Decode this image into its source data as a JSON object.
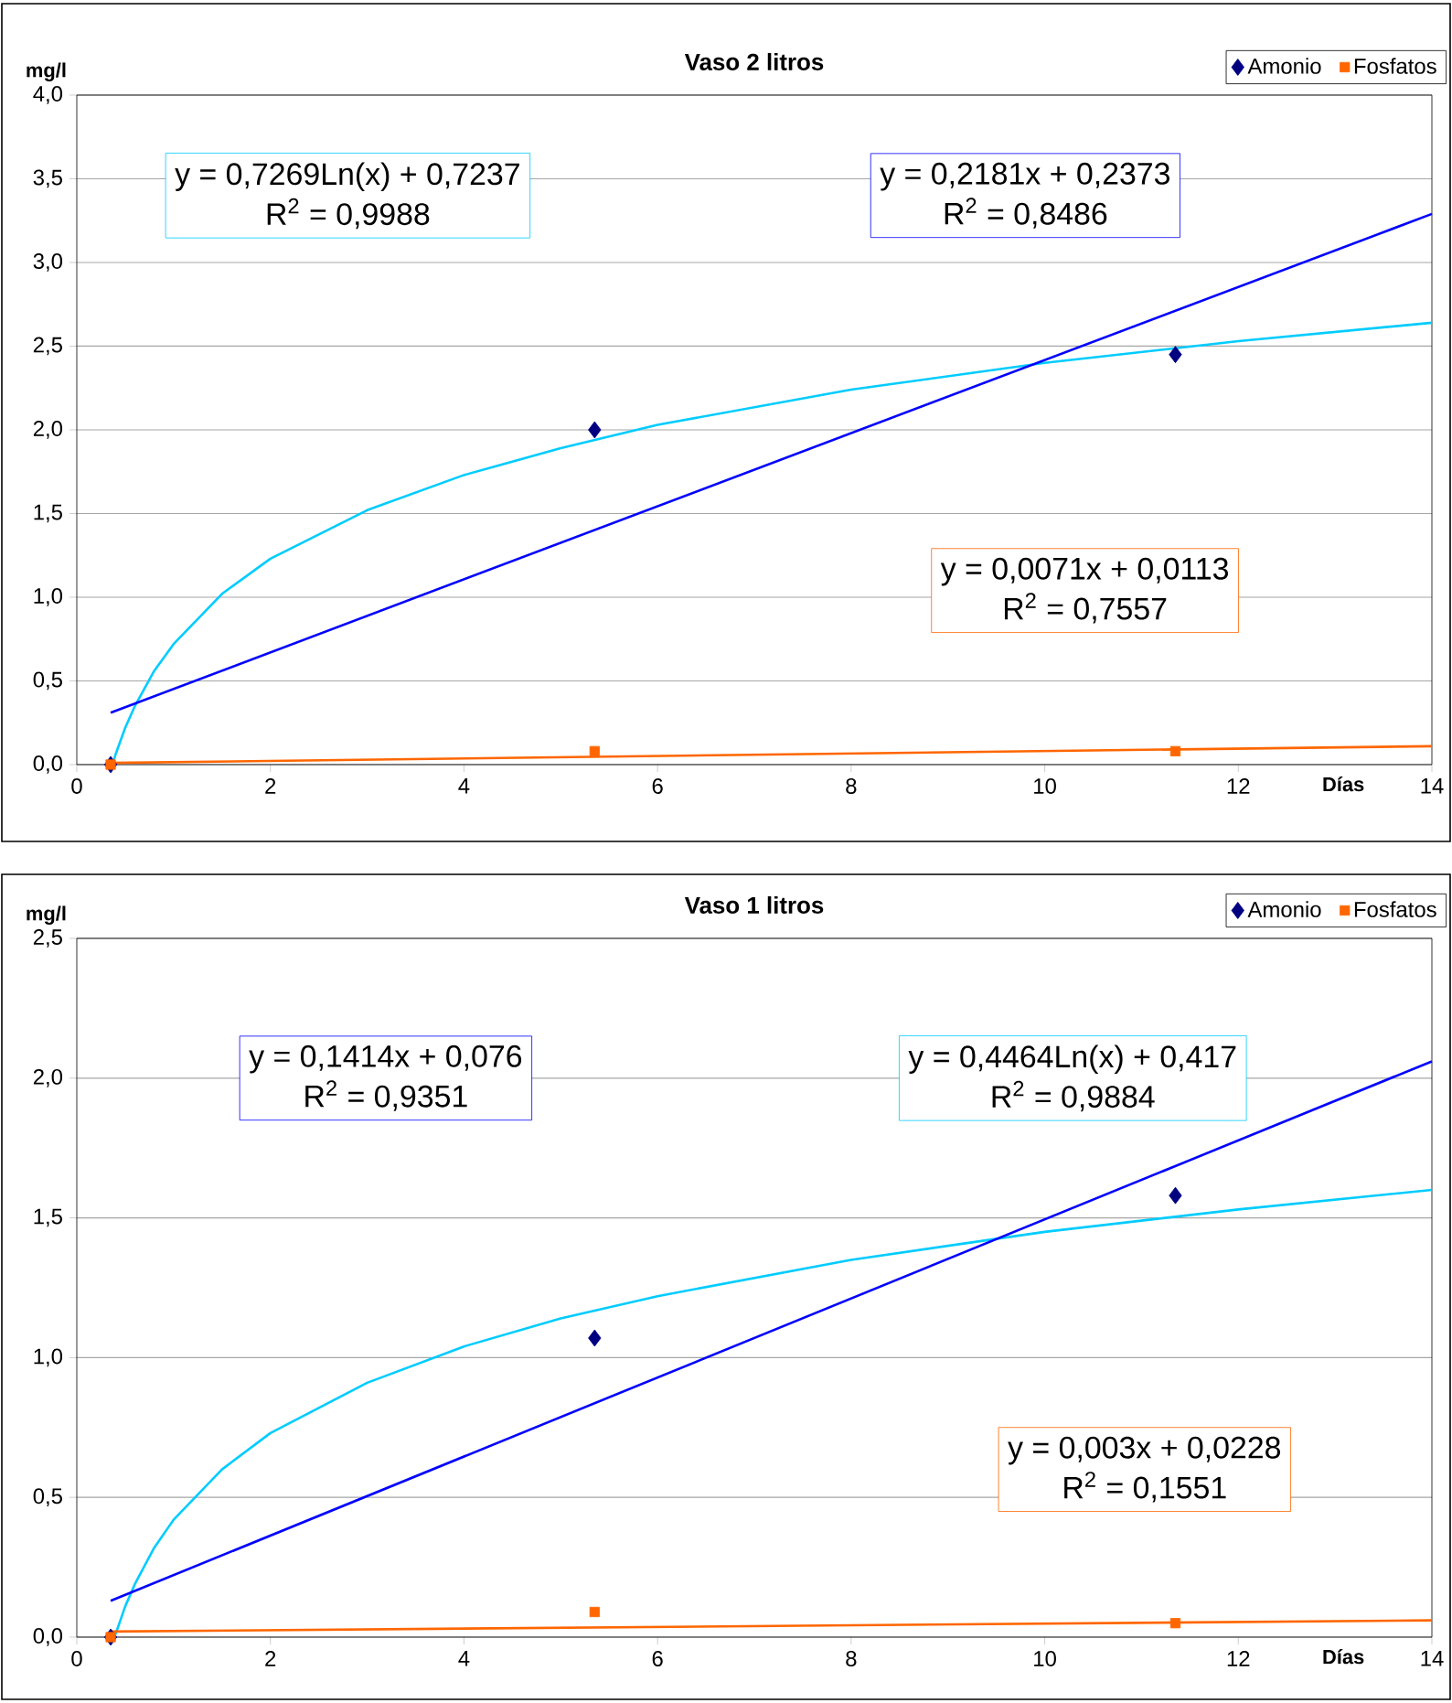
{
  "chart_data": [
    {
      "type": "scatter",
      "title": "Vaso 2 litros",
      "xlabel": "Días",
      "ylabel": "mg/l",
      "xlim": [
        0,
        14
      ],
      "xticks": [
        0,
        2,
        4,
        6,
        8,
        10,
        12,
        14
      ],
      "ylim": [
        0,
        4
      ],
      "yticks": [
        {
          "value": 0,
          "label": "0,0"
        },
        {
          "value": 0.5,
          "label": "0,5"
        },
        {
          "value": 1,
          "label": "1,0"
        },
        {
          "value": 1.5,
          "label": "1,5"
        },
        {
          "value": 2,
          "label": "2,0"
        },
        {
          "value": 2.5,
          "label": "2,5"
        },
        {
          "value": 3,
          "label": "3,0"
        },
        {
          "value": 3.5,
          "label": "3,5"
        },
        {
          "value": 4,
          "label": "4,0"
        }
      ],
      "grid": "y",
      "legend": "top right",
      "series": [
        {
          "name": "Amonio",
          "marker": "diamond",
          "color": "#000080",
          "x": [
            0.35,
            5.35,
            11.35
          ],
          "values": [
            0.0,
            2.0,
            2.45
          ]
        },
        {
          "name": "Fosfatos",
          "marker": "square",
          "color": "#ff6600",
          "x": [
            0.35,
            5.35,
            11.35
          ],
          "values": [
            0.0,
            0.08,
            0.08
          ]
        },
        {
          "type": "line",
          "marker": "none",
          "color": "#00ccff",
          "x": [
            0.37,
            0.4,
            0.5,
            0.6,
            0.8,
            1,
            1.5,
            2,
            3,
            4,
            5,
            6,
            8,
            10,
            12,
            14
          ],
          "values": [
            0.0,
            0.06,
            0.22,
            0.35,
            0.56,
            0.72,
            1.02,
            1.23,
            1.52,
            1.73,
            1.89,
            2.03,
            2.24,
            2.4,
            2.53,
            2.64
          ]
        },
        {
          "type": "line",
          "marker": "none",
          "color": "#0000ff",
          "x": [
            0.35,
            14
          ],
          "values": [
            0.31,
            3.29
          ]
        },
        {
          "type": "line",
          "marker": "none",
          "color": "#ff6600",
          "x": [
            0.35,
            14
          ],
          "values": [
            0.01,
            0.11
          ]
        }
      ],
      "annotations": [
        "y = 0,7269Ln(x) + 0,7237",
        "R$^{2}$ = 0,9988",
        "y = 0,2181x + 0,2373",
        "R$^{2}$ = 0,8486",
        "y = 0,0071x + 0,0113",
        "R$^{2}$ = 0,7557"
      ]
    },
    {
      "type": "scatter",
      "title": "Vaso 1 litros",
      "xlabel": "Días",
      "ylabel": "mg/l",
      "xlim": [
        0,
        14
      ],
      "xticks": [
        0,
        2,
        4,
        6,
        8,
        10,
        12,
        14
      ],
      "ylim": [
        0,
        2.5
      ],
      "yticks": [
        {
          "value": 0,
          "label": "0,0"
        },
        {
          "value": 0.5,
          "label": "0,5"
        },
        {
          "value": 1,
          "label": "1,0"
        },
        {
          "value": 1.5,
          "label": "1,5"
        },
        {
          "value": 2,
          "label": "2,0"
        },
        {
          "value": 2.5,
          "label": "2,5"
        }
      ],
      "grid": "y",
      "legend": "top right",
      "series": [
        {
          "name": "Amonio",
          "marker": "diamond",
          "color": "#000080",
          "x": [
            0.35,
            5.35,
            11.35
          ],
          "values": [
            0.0,
            1.07,
            1.58
          ]
        },
        {
          "name": "Fosfatos",
          "marker": "square",
          "color": "#ff6600",
          "x": [
            0.35,
            5.35,
            11.35
          ],
          "values": [
            0.0,
            0.09,
            0.05
          ]
        },
        {
          "type": "line",
          "marker": "none",
          "color": "#00ccff",
          "x": [
            0.4,
            0.5,
            0.6,
            0.8,
            1,
            1.5,
            2,
            3,
            4,
            5,
            6,
            8,
            10,
            12,
            14
          ],
          "values": [
            0.01,
            0.11,
            0.19,
            0.32,
            0.42,
            0.6,
            0.73,
            0.91,
            1.04,
            1.14,
            1.22,
            1.35,
            1.45,
            1.53,
            1.6
          ]
        },
        {
          "type": "line",
          "marker": "none",
          "color": "#0000ff",
          "x": [
            0.35,
            14
          ],
          "values": [
            0.13,
            2.06
          ]
        },
        {
          "type": "line",
          "marker": "none",
          "color": "#ff6600",
          "x": [
            0.35,
            14
          ],
          "values": [
            0.02,
            0.06
          ]
        }
      ],
      "annotations": [
        "y = 0,1414x + 0,076",
        "R$^{2}$ = 0,9351",
        "y = 0,4464Ln(x) + 0,417",
        "R$^{2}$ = 0,9884",
        "y = 0,003x + 0,0228",
        "R$^{2}$ = 0,1551"
      ]
    }
  ]
}
